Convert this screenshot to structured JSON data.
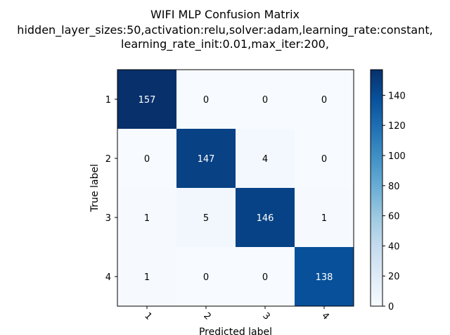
{
  "chart_data": {
    "type": "heatmap",
    "title_lines": [
      "WIFI MLP Confusion Matrix",
      "hidden_layer_sizes:50,activation:relu,solver:adam,learning_rate:constant,",
      "learning_rate_init:0.01,max_iter:200,"
    ],
    "xlabel": "Predicted label",
    "ylabel": "True label",
    "x_categories": [
      "1",
      "2",
      "3",
      "4"
    ],
    "y_categories": [
      "1",
      "2",
      "3",
      "4"
    ],
    "matrix": [
      [
        157,
        0,
        0,
        0
      ],
      [
        0,
        147,
        4,
        0
      ],
      [
        1,
        5,
        146,
        1
      ],
      [
        1,
        0,
        0,
        138
      ]
    ],
    "colormap": "Blues",
    "colorbar": {
      "range": [
        0,
        157
      ],
      "ticks": [
        0,
        20,
        40,
        60,
        80,
        100,
        120,
        140
      ]
    },
    "grid": false
  }
}
